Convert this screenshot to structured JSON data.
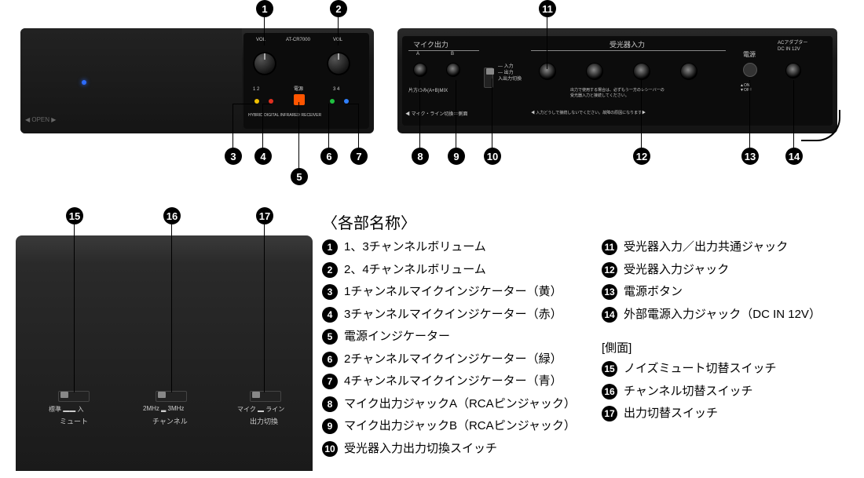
{
  "title": "〈各部名称〉",
  "side_heading": "[側面]",
  "callouts": {
    "1": "1、3チャンネルボリューム",
    "2": "2、4チャンネルボリューム",
    "3": "1チャンネルマイクインジケーター（黄）",
    "4": "3チャンネルマイクインジケーター（赤）",
    "5": "電源インジケーター",
    "6": "2チャンネルマイクインジケーター（緑）",
    "7": "4チャンネルマイクインジケーター（青）",
    "8": "マイク出力ジャックA（RCAピンジャック）",
    "9": "マイク出力ジャックB（RCAピンジャック）",
    "10": "受光器入力出力切換スイッチ",
    "11": "受光器入力／出力共通ジャック",
    "12": "受光器入力ジャック",
    "13": "電源ボタン",
    "14": "外部電源入力ジャック（DC IN 12V）",
    "15": "ノイズミュート切替スイッチ",
    "16": "チャンネル切替スイッチ",
    "17": "出力切替スイッチ"
  },
  "left_col": [
    "1",
    "2",
    "3",
    "4",
    "5",
    "6",
    "7",
    "8",
    "9",
    "10"
  ],
  "right_col_top": [
    "11",
    "12",
    "13",
    "14"
  ],
  "right_col_side": [
    "15",
    "16",
    "17"
  ],
  "device_labels": {
    "vol_l": "VOL",
    "model": "AT-CR7000",
    "vol_r": "VOL",
    "power": "電源",
    "ch12": "1  2",
    "ch34": "3  4",
    "hybrid": "HYBRID DIGITAL INFRARED RECEIVER",
    "open": "◀ OPEN ▶",
    "mic_out": "マイク出力",
    "a": "A",
    "b": "B",
    "mix": "片方のみ(A+B)MIX",
    "mic_line": "◀ マイク・ライン切換＝側面",
    "receiver_in": "受光器入力",
    "io": "— 入力\n— 出力\n入出力切換",
    "note": "出力で使用する場合は、必ずもう一方のレシーバーの\n受光器入力と接続してください。",
    "note2": "◀ 入力どうしで接続しないでください。故障の原因になります▶",
    "pwr": "電源",
    "onoff": "▲ON\n▼OFF",
    "ac": "ACアダプター\nDC IN 12V",
    "std_in": "標準 ▂▂ 入",
    "mute": "ミュート",
    "mhz": "2MHz ▂ 3MHz",
    "channel": "チャンネル",
    "micline": "マイク ▂ ライン",
    "outsw": "出力切換"
  },
  "led_colors": {
    "blue": "#2d6cff",
    "yellow": "#f0c000",
    "red": "#e03020",
    "orange": "#ff5500",
    "green": "#20c040",
    "blue2": "#3080ff"
  },
  "style": {
    "bg": "#ffffff",
    "badge_bg": "#000000",
    "badge_fg": "#ffffff",
    "device_bg": "#181818",
    "text": "#000000",
    "label_color": "#cccccc"
  }
}
